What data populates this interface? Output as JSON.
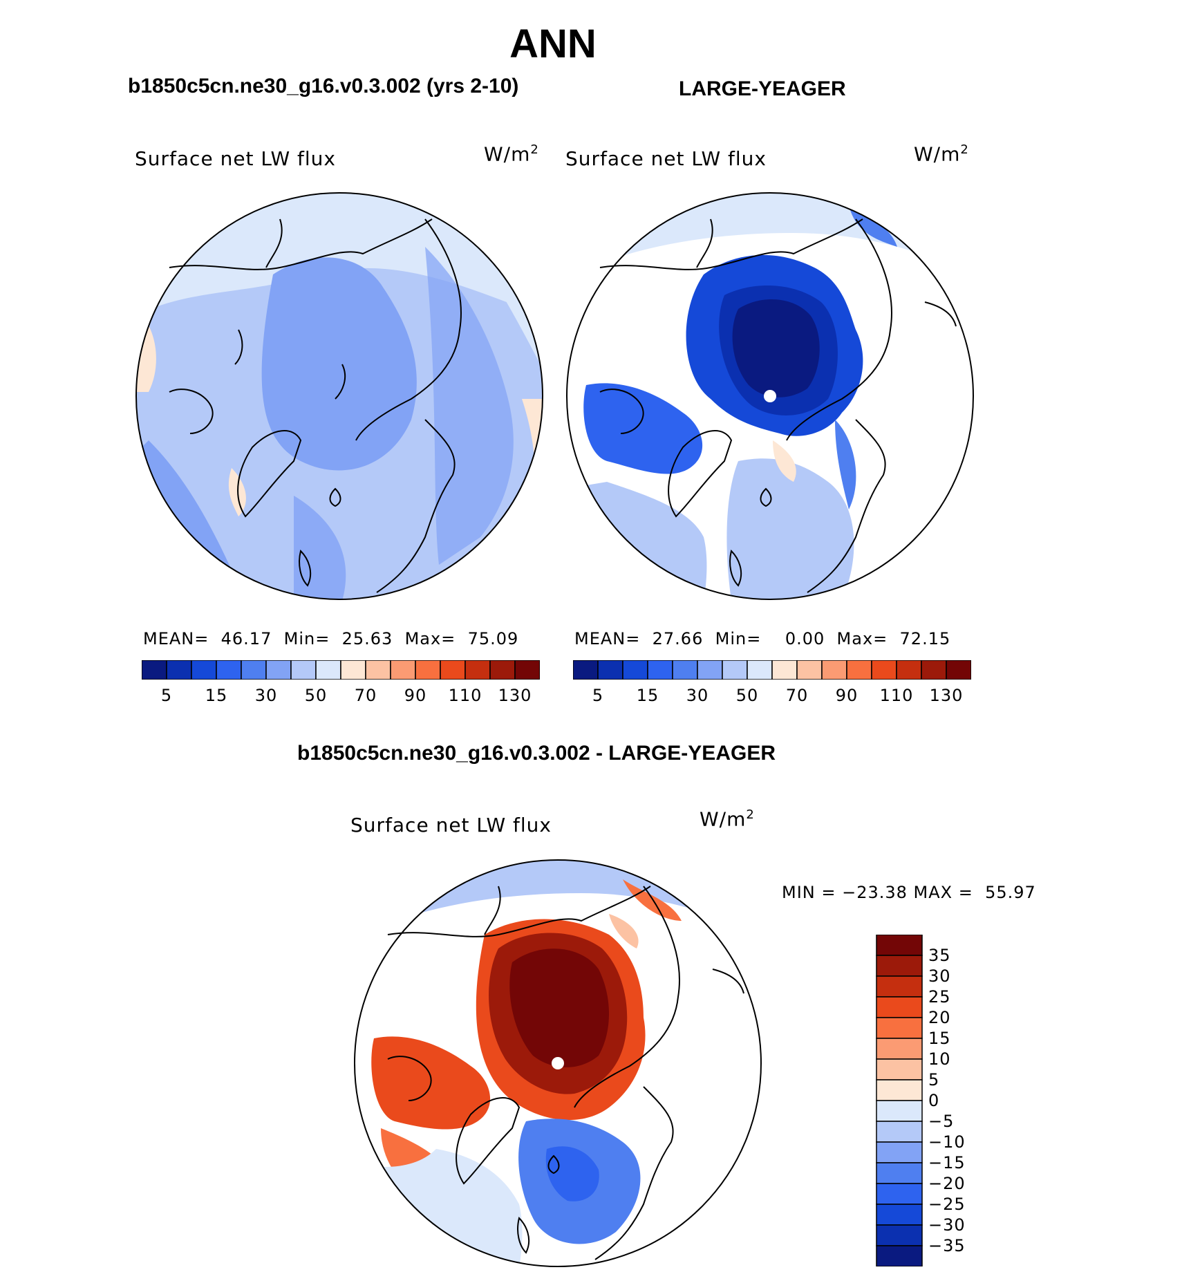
{
  "title": "ANN",
  "panels": [
    {
      "case": "b1850c5cn.ne30_g16.v0.3.002 (yrs 2-10)",
      "variable": "Surface net LW flux",
      "units": "W/m",
      "units_sup": "2",
      "stats": {
        "mean_label": "MEAN=",
        "mean": "46.17",
        "min_label": "Min=",
        "min": "25.63",
        "max_label": "Max=",
        "max": "75.09"
      }
    },
    {
      "case": "LARGE-YEAGER",
      "variable": "Surface net LW flux",
      "units": "W/m",
      "units_sup": "2",
      "stats": {
        "mean_label": "MEAN=",
        "mean": "27.66",
        "min_label": "Min=",
        "min": "0.00",
        "max_label": "Max=",
        "max": "72.15"
      }
    }
  ],
  "diff_panel": {
    "case": "b1850c5cn.ne30_g16.v0.3.002 - LARGE-YEAGER",
    "variable": "Surface net LW flux",
    "units": "W/m",
    "units_sup": "2",
    "stats": "MIN = −23.38 MAX =  55.97"
  },
  "chart_data": [
    {
      "type": "heatmap",
      "projection": "north polar stereographic",
      "title": "b1850c5cn.ne30_g16.v0.3.002 (yrs 2-10)",
      "variable": "Surface net LW flux",
      "units": "W/m2",
      "mean": 46.17,
      "min": 25.63,
      "max": 75.09,
      "colorbar_levels": [
        5,
        10,
        15,
        20,
        30,
        40,
        50,
        60,
        70,
        80,
        90,
        100,
        110,
        120,
        130
      ],
      "colorbar_tick_labels": [
        "5",
        "15",
        "30",
        "50",
        "70",
        "90",
        "110",
        "130"
      ],
      "colorbar_colors": [
        "#0a1a80",
        "#0b30b0",
        "#1549d8",
        "#2e63ef",
        "#4f7ff0",
        "#82a3f5",
        "#b4c9f8",
        "#dbe8fb",
        "#fde7d5",
        "#fcc2a3",
        "#fb9b73",
        "#f8703f",
        "#ea4a1c",
        "#c52f0f",
        "#9c1a0a",
        "#730606"
      ]
    },
    {
      "type": "heatmap",
      "projection": "north polar stereographic",
      "title": "LARGE-YEAGER",
      "variable": "Surface net LW flux",
      "units": "W/m2",
      "mean": 27.66,
      "min": 0.0,
      "max": 72.15,
      "colorbar_levels": [
        5,
        10,
        15,
        20,
        30,
        40,
        50,
        60,
        70,
        80,
        90,
        100,
        110,
        120,
        130
      ],
      "colorbar_tick_labels": [
        "5",
        "15",
        "30",
        "50",
        "70",
        "90",
        "110",
        "130"
      ],
      "colorbar_colors": [
        "#0a1a80",
        "#0b30b0",
        "#1549d8",
        "#2e63ef",
        "#4f7ff0",
        "#82a3f5",
        "#b4c9f8",
        "#dbe8fb",
        "#fde7d5",
        "#fcc2a3",
        "#fb9b73",
        "#f8703f",
        "#ea4a1c",
        "#c52f0f",
        "#9c1a0a",
        "#730606"
      ]
    },
    {
      "type": "heatmap",
      "projection": "north polar stereographic",
      "title": "b1850c5cn.ne30_g16.v0.3.002 - LARGE-YEAGER",
      "variable": "Surface net LW flux",
      "units": "W/m2",
      "min": -23.38,
      "max": 55.97,
      "colorbar_levels": [
        35,
        30,
        25,
        20,
        15,
        10,
        5,
        0,
        -5,
        -10,
        -15,
        -20,
        -25,
        -30,
        -35
      ],
      "colorbar_tick_labels": [
        "35",
        "30",
        "25",
        "20",
        "15",
        "10",
        "5",
        "0",
        "−5",
        "−10",
        "−15",
        "−20",
        "−25",
        "−30",
        "−35"
      ],
      "colorbar_colors": [
        "#730606",
        "#9c1a0a",
        "#c52f0f",
        "#ea4a1c",
        "#f8703f",
        "#fb9b73",
        "#fcc2a3",
        "#fde7d5",
        "#dbe8fb",
        "#b4c9f8",
        "#82a3f5",
        "#4f7ff0",
        "#2e63ef",
        "#1549d8",
        "#0b30b0",
        "#0a1a80"
      ]
    }
  ]
}
